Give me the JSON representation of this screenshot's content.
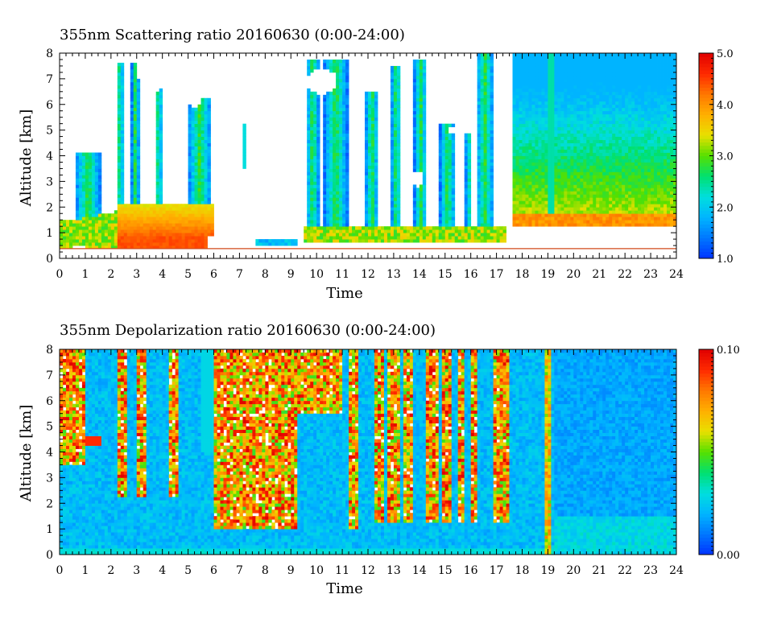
{
  "chart_data": [
    {
      "type": "heatmap",
      "title": "355nm Scattering ratio  20160630 (0:00-24:00)",
      "xlabel": "Time",
      "ylabel": "Altitude [km]",
      "xlim": [
        0,
        24
      ],
      "ylim": [
        0,
        8
      ],
      "x_ticks": [
        "0",
        "1",
        "2",
        "3",
        "4",
        "5",
        "6",
        "7",
        "8",
        "9",
        "10",
        "11",
        "12",
        "13",
        "14",
        "15",
        "16",
        "17",
        "18",
        "19",
        "20",
        "21",
        "22",
        "23",
        "24"
      ],
      "y_ticks": [
        "0",
        "1",
        "2",
        "3",
        "4",
        "5",
        "6",
        "7",
        "8"
      ],
      "colorbar": {
        "min": 1.0,
        "max": 5.0,
        "tick_values": [
          1.0,
          2.0,
          3.0,
          4.0,
          5.0
        ],
        "tick_labels": [
          "1.0",
          "2.0",
          "3.0",
          "4.0",
          "5.0"
        ]
      },
      "colormap": [
        "#0033ff",
        "#0077ff",
        "#00b4ff",
        "#00dede",
        "#00e070",
        "#55e000",
        "#e8e000",
        "#ffb000",
        "#ff7800",
        "#ff2a00",
        "#e00000"
      ],
      "masked_color": "#ffffff",
      "grid": false,
      "legend": "colorbar right"
    },
    {
      "type": "heatmap",
      "title": "355nm Depolarization ratio  20160630 (0:00-24:00)",
      "xlabel": "Time",
      "ylabel": "Altitude [km]",
      "xlim": [
        0,
        24
      ],
      "ylim": [
        0,
        8
      ],
      "x_ticks": [
        "0",
        "1",
        "2",
        "3",
        "4",
        "5",
        "6",
        "7",
        "8",
        "9",
        "10",
        "11",
        "12",
        "13",
        "14",
        "15",
        "16",
        "17",
        "18",
        "19",
        "20",
        "21",
        "22",
        "23",
        "24"
      ],
      "y_ticks": [
        "0",
        "1",
        "2",
        "3",
        "4",
        "5",
        "6",
        "7",
        "8"
      ],
      "colorbar": {
        "min": 0.0,
        "max": 0.1,
        "tick_values": [
          0.0,
          0.1
        ],
        "tick_labels": [
          "0.00",
          "0.10"
        ]
      },
      "colormap": [
        "#0033ff",
        "#0077ff",
        "#00b4ff",
        "#00dede",
        "#00e070",
        "#55e000",
        "#e8e000",
        "#ffb000",
        "#ff7800",
        "#ff2a00",
        "#e00000"
      ],
      "masked_color": "#ffffff",
      "grid": false,
      "legend": "colorbar right"
    }
  ]
}
